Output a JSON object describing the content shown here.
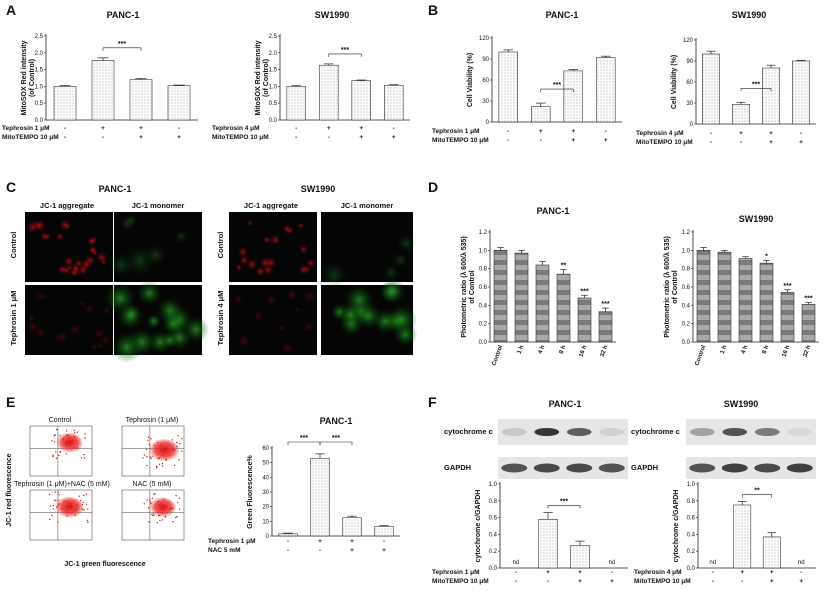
{
  "panel_letters": [
    "A",
    "B",
    "C",
    "D",
    "E",
    "F"
  ],
  "nd": "nd",
  "panel_C": {
    "columns_left": [
      "JC-1 aggregate",
      "JC-1 monomer"
    ],
    "columns_right": [
      "JC-1 aggregate",
      "JC-1 monomer"
    ],
    "rows": [
      "Control",
      "Tephrosin 1 μM",
      "Control",
      "Tephrosin 4 μM"
    ],
    "titles": [
      "PANC-1",
      "SW1990"
    ]
  },
  "panel_E": {
    "quadrants": [
      "Control",
      "Tephrosin (1 μM)",
      "Tephrosin (1 μM)+NAC (5 mM)",
      "NAC (5 mM)"
    ],
    "ylabel": "JC-1 red fluorescence",
    "xlabel": "JC-1 green fluorescence"
  },
  "panel_F": {
    "blot_labels": [
      "cytochrome c",
      "GAPDH"
    ]
  },
  "chart_data": [
    {
      "id": "A1",
      "type": "bar",
      "title": "PANC-1",
      "ylabel": "MitoSOX Red intensity (of Control)",
      "ylim": [
        0,
        2.5
      ],
      "yticks": [
        "0.0",
        "0.5",
        "1.0",
        "1.5",
        "2.0",
        "2.5"
      ],
      "values": [
        1.0,
        1.77,
        1.2,
        1.02
      ],
      "errors": [
        0.03,
        0.08,
        0.03,
        0.02
      ],
      "sig": [
        "***"
      ],
      "conditions": [
        {
          "name": "Tephrosin 1 μM",
          "signs": [
            "-",
            "+",
            "+",
            "-"
          ]
        },
        {
          "name": "MitoTEMPO 10 μM",
          "signs": [
            "-",
            "-",
            "+",
            "+"
          ]
        }
      ]
    },
    {
      "id": "A2",
      "type": "bar",
      "title": "SW1990",
      "ylabel": "MitoSOX Red intensity (of Control)",
      "ylim": [
        0,
        2.5
      ],
      "yticks": [
        "0.0",
        "0.5",
        "1.0",
        "1.5",
        "2.0",
        "2.5"
      ],
      "values": [
        1.0,
        1.63,
        1.17,
        1.03
      ],
      "errors": [
        0.02,
        0.04,
        0.02,
        0.02
      ],
      "sig": [
        "***"
      ],
      "conditions": [
        {
          "name": "Tephrosin 4 μM",
          "signs": [
            "-",
            "+",
            "+",
            "-"
          ]
        },
        {
          "name": "MitoTEMPO 10 μM",
          "signs": [
            "-",
            "-",
            "+",
            "+"
          ]
        }
      ]
    },
    {
      "id": "B1",
      "type": "bar",
      "title": "PANC-1",
      "ylabel": "Cell Viability (%)",
      "ylim": [
        0,
        120
      ],
      "yticks": [
        "0",
        "30",
        "60",
        "90",
        "120"
      ],
      "values": [
        100,
        22,
        73,
        92
      ],
      "errors": [
        3,
        5,
        2,
        2
      ],
      "sig": [
        "***"
      ],
      "conditions": [
        {
          "name": "Tephrosin 1 μM",
          "signs": [
            "-",
            "+",
            "+",
            "-"
          ]
        },
        {
          "name": "MitoTEMPO 10 μM",
          "signs": [
            "-",
            "-",
            "+",
            "+"
          ]
        }
      ]
    },
    {
      "id": "B2",
      "type": "bar",
      "title": "SW1990",
      "ylabel": "Cell Viability (%)",
      "ylim": [
        0,
        120
      ],
      "yticks": [
        "0",
        "30",
        "60",
        "90",
        "120"
      ],
      "values": [
        100,
        28,
        80,
        90
      ],
      "errors": [
        4,
        3,
        4,
        1
      ],
      "sig": [
        "***"
      ],
      "conditions": [
        {
          "name": "Tephrosin 4 μM",
          "signs": [
            "-",
            "+",
            "+",
            "-"
          ]
        },
        {
          "name": "MitoTEMPO 10 μM",
          "signs": [
            "-",
            "-",
            "+",
            "+"
          ]
        }
      ]
    },
    {
      "id": "D1",
      "type": "bar",
      "title": "PANC-1",
      "ylabel": "Photometric ratio (λ 600/λ 535) of Control",
      "ylim": [
        0,
        1.2
      ],
      "yticks": [
        "0.0",
        "0.2",
        "0.4",
        "0.6",
        "0.8",
        "1.0",
        "1.2"
      ],
      "categories": [
        "Control",
        "1 h",
        "4 h",
        "8 h",
        "16 h",
        "32 h"
      ],
      "values": [
        1.0,
        0.97,
        0.84,
        0.74,
        0.48,
        0.33
      ],
      "errors": [
        0.03,
        0.03,
        0.04,
        0.05,
        0.03,
        0.04
      ],
      "marks": [
        "",
        "",
        "",
        "**",
        "***",
        "***"
      ]
    },
    {
      "id": "D2",
      "type": "bar",
      "title": "SW1990",
      "ylabel": "Photometric ratio (λ 600/λ 535) of Control",
      "ylim": [
        0,
        1.2
      ],
      "yticks": [
        "0.0",
        "0.2",
        "0.4",
        "0.6",
        "0.8",
        "1.0",
        "1.2"
      ],
      "categories": [
        "Control",
        "1 h",
        "4 h",
        "8 h",
        "16 h",
        "32 h"
      ],
      "values": [
        1.0,
        0.98,
        0.91,
        0.86,
        0.54,
        0.41
      ],
      "errors": [
        0.03,
        0.02,
        0.02,
        0.03,
        0.03,
        0.02
      ],
      "marks": [
        "",
        "",
        "",
        "*",
        "***",
        "***"
      ]
    },
    {
      "id": "E1",
      "type": "bar",
      "title": "PANC-1",
      "ylabel": "Green Fluorescence%",
      "ylim": [
        0,
        60
      ],
      "yticks": [
        "0",
        "10",
        "20",
        "30",
        "40",
        "50",
        "60"
      ],
      "values": [
        1.5,
        53,
        12.5,
        6.5
      ],
      "errors": [
        0.5,
        3,
        1,
        0.5
      ],
      "sig": [
        "***",
        "***"
      ],
      "conditions": [
        {
          "name": "Tephrosin 1 μM",
          "signs": [
            "-",
            "+",
            "+",
            "-"
          ]
        },
        {
          "name": "NAC 5 mM",
          "signs": [
            "-",
            "-",
            "+",
            "+"
          ]
        }
      ]
    },
    {
      "id": "F1",
      "type": "bar",
      "title": "PANC-1",
      "ylabel": "cytochrome c/GAPDH",
      "ylim": [
        0,
        1.0
      ],
      "yticks": [
        "0.0",
        "0.2",
        "0.4",
        "0.6",
        "0.8",
        "1.0"
      ],
      "values": [
        null,
        0.58,
        0.27,
        null
      ],
      "errors": [
        0,
        0.08,
        0.05,
        0
      ],
      "sig": [
        "***"
      ],
      "conditions": [
        {
          "name": "Tephrosin 1 μM",
          "signs": [
            "-",
            "+",
            "+",
            "-"
          ]
        },
        {
          "name": "MitoTEMPO 10 μM",
          "signs": [
            "-",
            "-",
            "+",
            "+"
          ]
        }
      ]
    },
    {
      "id": "F2",
      "type": "bar",
      "title": "SW1990",
      "ylabel": "cytochrome c/GAPDH",
      "ylim": [
        0,
        1.0
      ],
      "yticks": [
        "0.0",
        "0.2",
        "0.4",
        "0.6",
        "0.8",
        "1.0"
      ],
      "values": [
        null,
        0.75,
        0.37,
        null
      ],
      "errors": [
        0,
        0.04,
        0.05,
        0
      ],
      "sig": [
        "**"
      ],
      "conditions": [
        {
          "name": "Tephrosin 4 μM",
          "signs": [
            "-",
            "+",
            "+",
            "-"
          ]
        },
        {
          "name": "MitoTEMPO 10 μM",
          "signs": [
            "-",
            "-",
            "+",
            "+"
          ]
        }
      ]
    }
  ]
}
